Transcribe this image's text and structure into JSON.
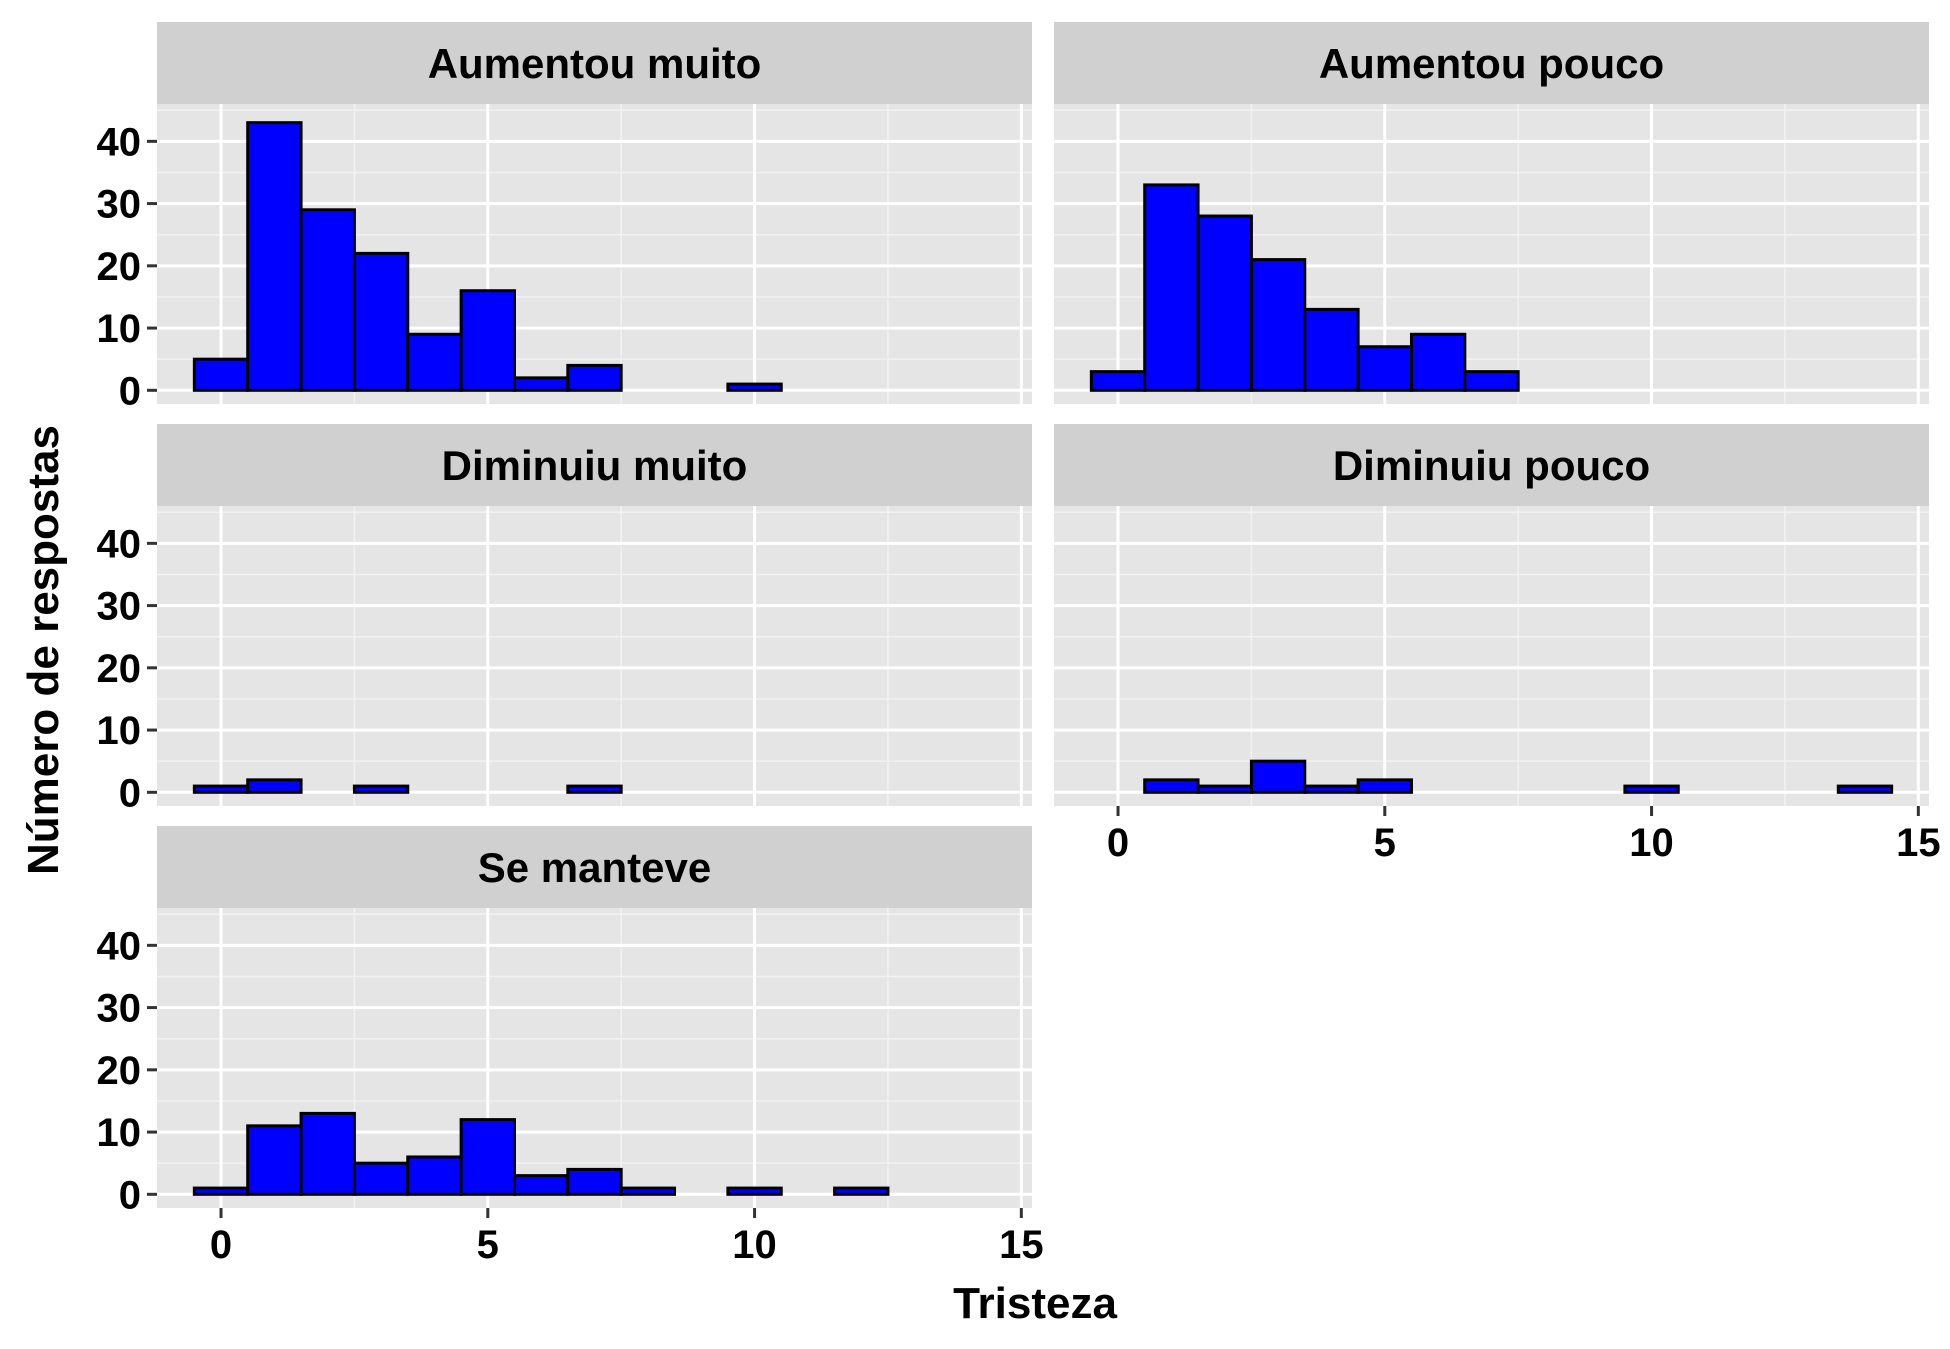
{
  "chart_data": {
    "type": "bar",
    "chart_kind": "faceted histogram",
    "xlabel": "Tristeza",
    "ylabel": "Número de respostas",
    "xlim": [
      -1.2,
      15.2
    ],
    "ylim": [
      -2.2,
      46
    ],
    "x_ticks": [
      0,
      5,
      10,
      15
    ],
    "y_ticks": [
      0,
      10,
      20,
      30,
      40
    ],
    "x_minor_ticks": [
      2.5,
      7.5,
      12.5
    ],
    "y_minor_ticks": [
      5,
      15,
      25,
      35,
      45
    ],
    "bin_width": 1,
    "grid": true,
    "colors": {
      "bar_fill": "#0000ff",
      "bar_stroke": "#000000",
      "panel_bg": "#e5e5e5",
      "strip_bg": "#d0d0d0",
      "grid_major": "#ffffff",
      "grid_minor": "#f2f2f2"
    },
    "facets": [
      {
        "name": "Aumentou muito",
        "bins": [
          {
            "x": 0,
            "count": 5
          },
          {
            "x": 1,
            "count": 43
          },
          {
            "x": 2,
            "count": 29
          },
          {
            "x": 3,
            "count": 22
          },
          {
            "x": 4,
            "count": 9
          },
          {
            "x": 5,
            "count": 16
          },
          {
            "x": 6,
            "count": 2
          },
          {
            "x": 7,
            "count": 4
          },
          {
            "x": 10,
            "count": 1
          }
        ]
      },
      {
        "name": "Aumentou pouco",
        "bins": [
          {
            "x": 0,
            "count": 3
          },
          {
            "x": 1,
            "count": 33
          },
          {
            "x": 2,
            "count": 28
          },
          {
            "x": 3,
            "count": 21
          },
          {
            "x": 4,
            "count": 13
          },
          {
            "x": 5,
            "count": 7
          },
          {
            "x": 6,
            "count": 9
          },
          {
            "x": 7,
            "count": 3
          }
        ]
      },
      {
        "name": "Diminuiu muito",
        "bins": [
          {
            "x": 0,
            "count": 1
          },
          {
            "x": 1,
            "count": 2
          },
          {
            "x": 3,
            "count": 1
          },
          {
            "x": 7,
            "count": 1
          }
        ]
      },
      {
        "name": "Diminuiu pouco",
        "bins": [
          {
            "x": 1,
            "count": 2
          },
          {
            "x": 2,
            "count": 1
          },
          {
            "x": 3,
            "count": 5
          },
          {
            "x": 4,
            "count": 1
          },
          {
            "x": 5,
            "count": 2
          },
          {
            "x": 10,
            "count": 1
          },
          {
            "x": 14,
            "count": 1
          }
        ]
      },
      {
        "name": "Se manteve",
        "bins": [
          {
            "x": 0,
            "count": 1
          },
          {
            "x": 1,
            "count": 11
          },
          {
            "x": 2,
            "count": 13
          },
          {
            "x": 3,
            "count": 5
          },
          {
            "x": 4,
            "count": 6
          },
          {
            "x": 5,
            "count": 12
          },
          {
            "x": 6,
            "count": 3
          },
          {
            "x": 7,
            "count": 4
          },
          {
            "x": 8,
            "count": 1
          },
          {
            "x": 10,
            "count": 1
          },
          {
            "x": 12,
            "count": 1
          }
        ]
      }
    ]
  }
}
